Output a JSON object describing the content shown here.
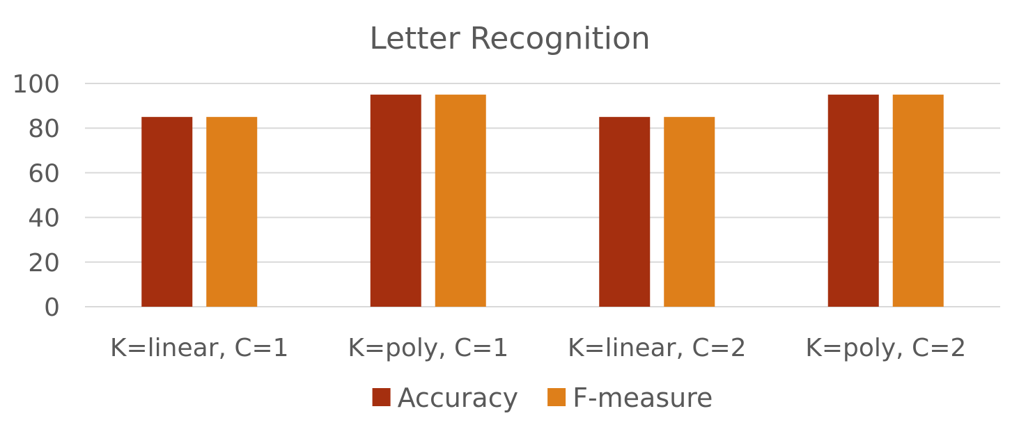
{
  "chart_data": {
    "type": "bar",
    "title": "Letter Recognition",
    "categories": [
      "K=linear, C=1",
      "K=poly, C=1",
      "K=linear, C=2",
      "K=poly, C=2"
    ],
    "series": [
      {
        "name": "Accuracy",
        "values": [
          85,
          95,
          85,
          95
        ],
        "color": "#A52F0F"
      },
      {
        "name": "F-measure",
        "values": [
          85,
          95,
          85,
          95
        ],
        "color": "#DE7F1A"
      }
    ],
    "ylim": [
      0,
      100
    ],
    "yticks": [
      0,
      20,
      40,
      60,
      80,
      100
    ],
    "grid": true,
    "legend": "bottom"
  }
}
